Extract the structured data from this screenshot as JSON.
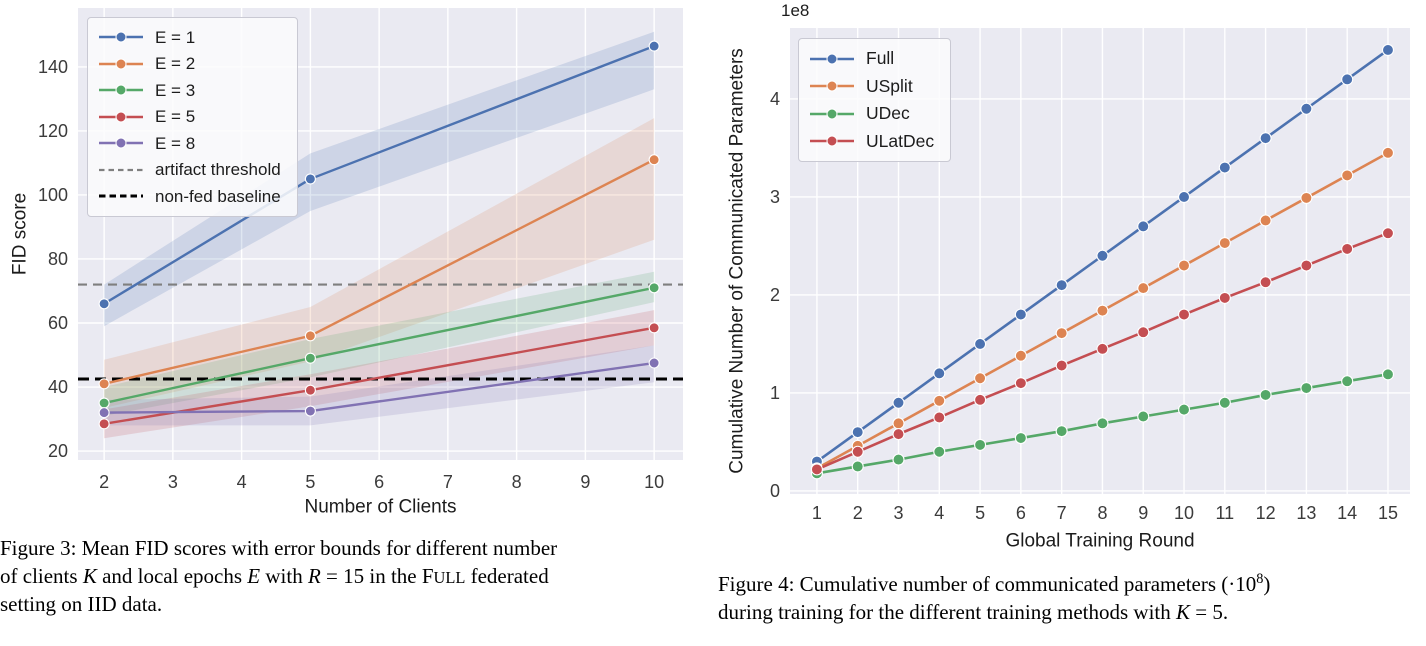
{
  "page_background": "#ffffff",
  "figures": [
    {
      "id": "figure-3",
      "caption_segments": [
        {
          "t": "Figure 3:  Mean FID scores with error bounds for different number"
        },
        {
          "br": true
        },
        {
          "t": "of clients "
        },
        {
          "t": "K",
          "s": "i"
        },
        {
          "t": " and local epochs "
        },
        {
          "t": "E",
          "s": "i"
        },
        {
          "t": " with "
        },
        {
          "t": "R",
          "s": "i"
        },
        {
          "t": " = 15 in the F"
        },
        {
          "t": "ULL",
          "s": "small"
        },
        {
          "t": " federated"
        },
        {
          "br": true
        },
        {
          "t": "setting on IID data."
        }
      ]
    },
    {
      "id": "figure-4",
      "caption_segments": [
        {
          "t": "Figure 4:  Cumulative number of communicated parameters (·10"
        },
        {
          "t": "8",
          "s": "sup"
        },
        {
          "t": ")"
        },
        {
          "br": true
        },
        {
          "t": "during training for the different training methods with "
        },
        {
          "t": "K",
          "s": "i"
        },
        {
          "t": " = 5."
        }
      ]
    }
  ],
  "chart_data": [
    {
      "type": "line",
      "title": "",
      "xlabel": "Number of Clients",
      "ylabel": "FID score",
      "grid": true,
      "legend_position": "upper left",
      "axes_background": "#eaeaf2",
      "grid_color": "#ffffff",
      "tick_color": "#3b3b3b",
      "x": [
        2,
        5,
        10
      ],
      "xticks": [
        2,
        3,
        4,
        5,
        6,
        7,
        8,
        9,
        10
      ],
      "yticks": [
        20,
        40,
        60,
        80,
        100,
        120,
        140
      ],
      "xlim": [
        1.62,
        10.42
      ],
      "ylim": [
        17.2,
        158.4
      ],
      "series": [
        {
          "name": "E = 1",
          "color": "#4C72B0",
          "values": [
            66,
            105,
            146.5
          ],
          "band_low": [
            59,
            95,
            133
          ],
          "band_high": [
            72,
            113,
            151
          ]
        },
        {
          "name": "E = 2",
          "color": "#DD8452",
          "values": [
            41,
            56,
            111
          ],
          "band_low": [
            33.5,
            48,
            86
          ],
          "band_high": [
            48.5,
            65,
            124
          ]
        },
        {
          "name": "E = 3",
          "color": "#55A868",
          "values": [
            35,
            49,
            71
          ],
          "band_low": [
            31,
            43,
            66.5
          ],
          "band_high": [
            40,
            55,
            76
          ]
        },
        {
          "name": "E = 5",
          "color": "#C44E52",
          "values": [
            28.5,
            39,
            58.5
          ],
          "band_low": [
            24,
            34,
            53
          ],
          "band_high": [
            33,
            44,
            64
          ]
        },
        {
          "name": "E = 8",
          "color": "#8172B3",
          "values": [
            32,
            32.5,
            47.5
          ],
          "band_low": [
            28,
            28,
            41.5
          ],
          "band_high": [
            36,
            37,
            53
          ]
        }
      ],
      "hlines": [
        {
          "name": "artifact threshold",
          "value": 72,
          "color": "#7f7f7f",
          "width": 2.2,
          "dasharray": "9,6",
          "legend_dash": "5.5,4"
        },
        {
          "name": "non-fed baseline",
          "value": 42.5,
          "color": "#000000",
          "width": 3,
          "dasharray": "11,6",
          "legend_dash": "6.5,4"
        }
      ]
    },
    {
      "type": "line",
      "title": "",
      "xlabel": "Global Training Round",
      "ylabel": "Cumulative Number of Communicated Parameters",
      "offset_text": "1e8",
      "grid": true,
      "legend_position": "upper left",
      "axes_background": "#eaeaf2",
      "grid_color": "#ffffff",
      "tick_color": "#3b3b3b",
      "x": [
        1,
        2,
        3,
        4,
        5,
        6,
        7,
        8,
        9,
        10,
        11,
        12,
        13,
        14,
        15
      ],
      "xticks": [
        1,
        2,
        3,
        4,
        5,
        6,
        7,
        8,
        9,
        10,
        11,
        12,
        13,
        14,
        15
      ],
      "yticks": [
        0,
        1,
        2,
        3,
        4
      ],
      "xlim": [
        0.34,
        15.54
      ],
      "ylim": [
        -0.031,
        4.724
      ],
      "series": [
        {
          "name": "Full",
          "color": "#4C72B0",
          "values": [
            0.3,
            0.6,
            0.9,
            1.2,
            1.5,
            1.8,
            2.1,
            2.4,
            2.7,
            3.0,
            3.3,
            3.6,
            3.9,
            4.2,
            4.5
          ]
        },
        {
          "name": "USplit",
          "color": "#DD8452",
          "values": [
            0.23,
            0.46,
            0.69,
            0.92,
            1.15,
            1.38,
            1.61,
            1.84,
            2.07,
            2.3,
            2.53,
            2.76,
            2.99,
            3.22,
            3.45
          ]
        },
        {
          "name": "UDec",
          "color": "#55A868",
          "values": [
            0.18,
            0.25,
            0.32,
            0.4,
            0.47,
            0.54,
            0.61,
            0.69,
            0.76,
            0.83,
            0.9,
            0.98,
            1.05,
            1.12,
            1.19
          ]
        },
        {
          "name": "ULatDec",
          "color": "#C44E52",
          "values": [
            0.22,
            0.4,
            0.58,
            0.75,
            0.93,
            1.1,
            1.28,
            1.45,
            1.62,
            1.8,
            1.97,
            2.13,
            2.3,
            2.47,
            2.63
          ]
        }
      ],
      "hlines": []
    }
  ]
}
